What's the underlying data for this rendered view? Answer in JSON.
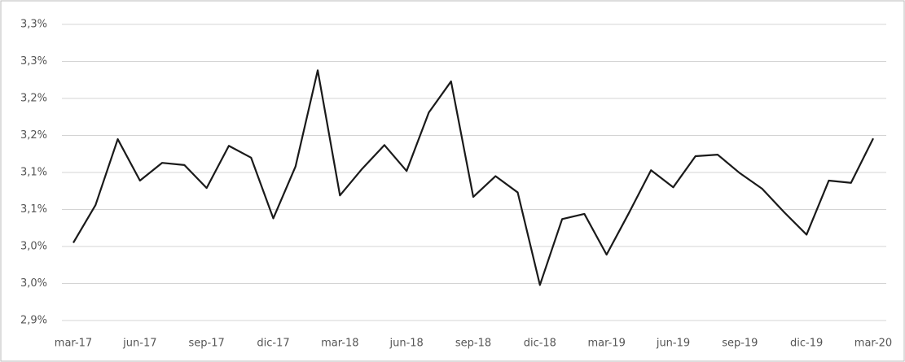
{
  "chart_data": {
    "type": "line",
    "categories": [
      "mar-17",
      null,
      null,
      "jun-17",
      null,
      null,
      "sep-17",
      null,
      null,
      "dic-17",
      null,
      null,
      "mar-18",
      null,
      null,
      "jun-18",
      null,
      null,
      "sep-18",
      null,
      null,
      "dic-18",
      null,
      null,
      "mar-19",
      null,
      null,
      "jun-19",
      null,
      null,
      "sep-19",
      null,
      null,
      "dic-19",
      null,
      null,
      "mar-20"
    ],
    "series": [
      {
        "name": null,
        "color": "#1a1a1a",
        "values": [
          3.005,
          3.056,
          3.145,
          3.089,
          3.113,
          3.11,
          3.079,
          3.136,
          3.12,
          3.038,
          3.108,
          3.238,
          3.069,
          3.105,
          3.137,
          3.102,
          3.181,
          3.223,
          3.067,
          3.095,
          3.073,
          2.948,
          3.037,
          3.044,
          2.989,
          3.045,
          3.103,
          3.08,
          3.122,
          3.124,
          3.099,
          3.078,
          3.046,
          3.016,
          3.089,
          3.086,
          3.146
        ]
      }
    ],
    "ylim": [
      2.9,
      3.3
    ],
    "yticks": [
      {
        "value": 2.9,
        "label": "2,9%"
      },
      {
        "value": 2.95,
        "label": "3,0%"
      },
      {
        "value": 3.0,
        "label": "3,0%"
      },
      {
        "value": 3.05,
        "label": "3,1%"
      },
      {
        "value": 3.1,
        "label": "3,1%"
      },
      {
        "value": 3.15,
        "label": "3,2%"
      },
      {
        "value": 3.2,
        "label": "3,2%"
      },
      {
        "value": 3.25,
        "label": "3,3%"
      },
      {
        "value": 3.3,
        "label": "3,3%"
      }
    ],
    "grid": true
  }
}
